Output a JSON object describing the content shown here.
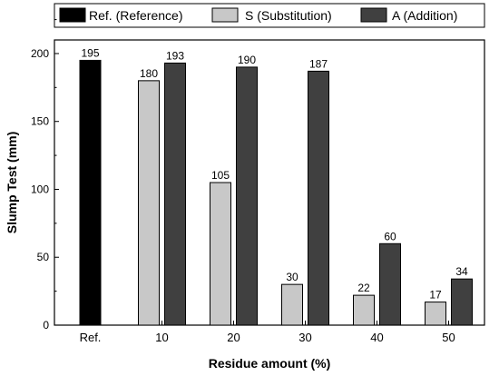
{
  "chart_data": {
    "type": "bar",
    "xlabel": "Residue amount (%)",
    "ylabel": "Slump Test (mm)",
    "ylim": [
      0,
      210
    ],
    "yticks": [
      0,
      50,
      100,
      150,
      200
    ],
    "grid": false,
    "legend_position": "top",
    "categories": [
      "Ref.",
      "10",
      "20",
      "30",
      "40",
      "50"
    ],
    "series": [
      {
        "name": "Ref. (Reference)",
        "color": "#000000",
        "values": [
          195,
          null,
          null,
          null,
          null,
          null
        ]
      },
      {
        "name": "S (Substitution)",
        "color": "#c8c8c8",
        "values": [
          null,
          180,
          105,
          30,
          22,
          17
        ]
      },
      {
        "name": "A (Addition)",
        "color": "#404040",
        "values": [
          null,
          193,
          190,
          187,
          60,
          34
        ]
      }
    ]
  }
}
